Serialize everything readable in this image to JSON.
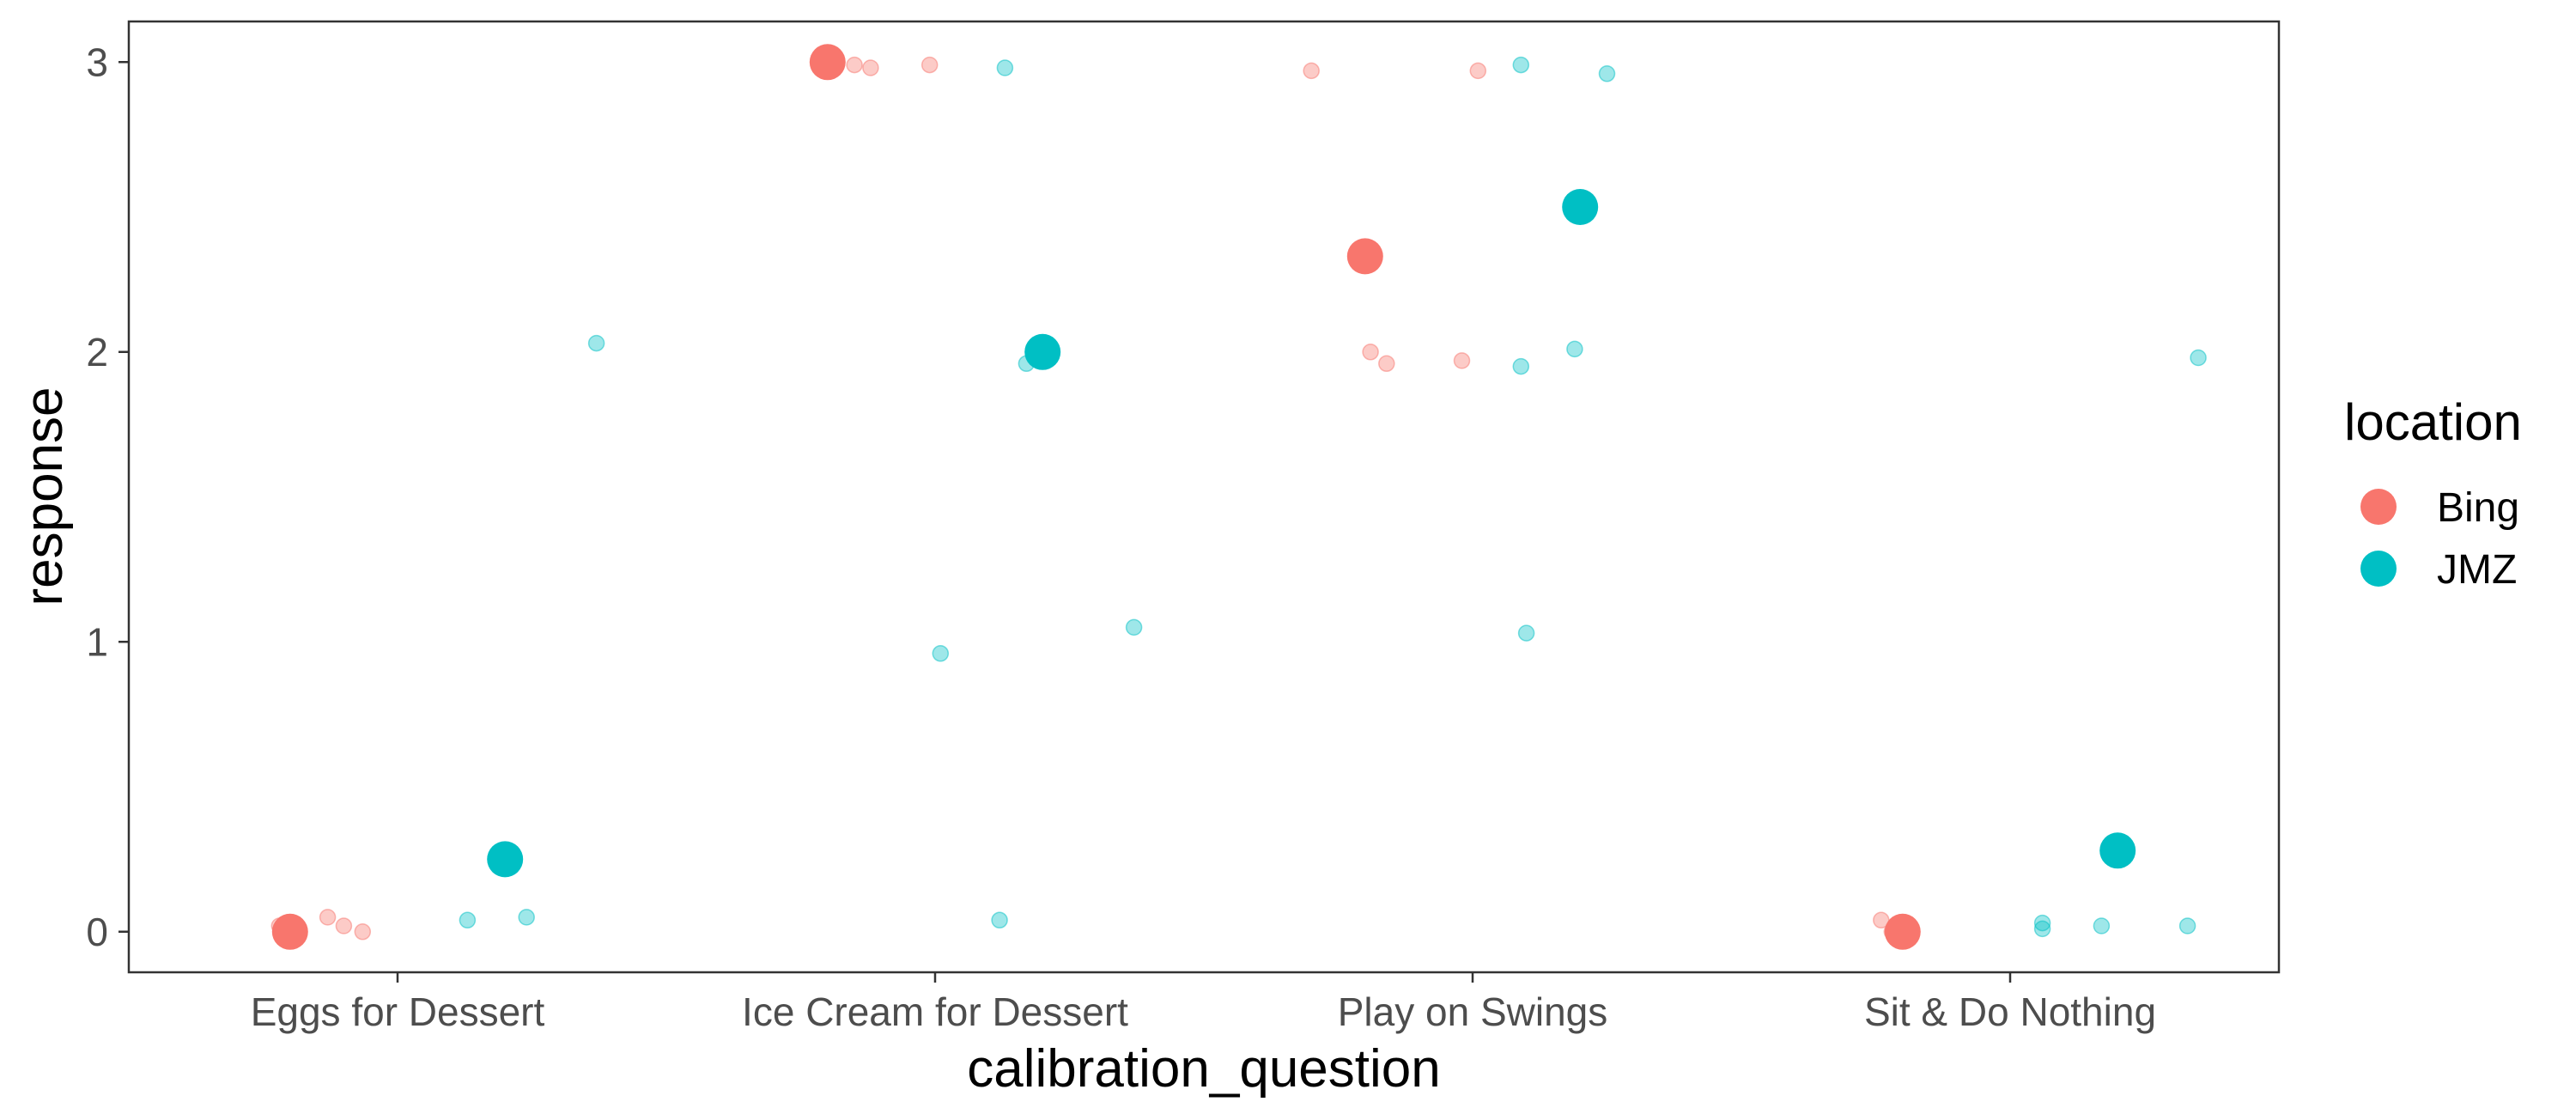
{
  "chart_data": {
    "type": "scatter",
    "title": "",
    "xlabel": "calibration_question",
    "ylabel": "response",
    "categories": [
      "Eggs for Dessert",
      "Ice Cream for Dessert",
      "Play on Swings",
      "Sit & Do Nothing"
    ],
    "yticks": [
      0,
      1,
      2,
      3
    ],
    "ylim": [
      -0.14,
      3.14
    ],
    "grid": false,
    "legend": {
      "title": "location",
      "placement": "right",
      "entries": [
        {
          "name": "Bing",
          "color": "#F8766D"
        },
        {
          "name": "JMZ",
          "color": "#00BFC4"
        }
      ]
    },
    "series": [
      {
        "name": "Bing",
        "color": "#F8766D",
        "means": [
          {
            "x": -0.2,
            "y": 0.0
          },
          {
            "x": 0.8,
            "y": 3.0
          },
          {
            "x": 1.8,
            "y": 2.33
          },
          {
            "x": 2.8,
            "y": 0.0
          }
        ],
        "points": [
          {
            "x": -0.22,
            "y": 0.02
          },
          {
            "x": -0.13,
            "y": 0.05
          },
          {
            "x": -0.1,
            "y": 0.02
          },
          {
            "x": -0.065,
            "y": 0.0
          },
          {
            "x": 0.85,
            "y": 2.99
          },
          {
            "x": 0.88,
            "y": 2.98
          },
          {
            "x": 0.99,
            "y": 2.99
          },
          {
            "x": 1.7,
            "y": 2.97
          },
          {
            "x": 1.81,
            "y": 2.0
          },
          {
            "x": 1.84,
            "y": 1.96
          },
          {
            "x": 2.01,
            "y": 2.97
          },
          {
            "x": 1.98,
            "y": 1.97
          },
          {
            "x": 2.76,
            "y": 0.04
          },
          {
            "x": 2.78,
            "y": 0.0
          }
        ]
      },
      {
        "name": "JMZ",
        "color": "#00BFC4",
        "means": [
          {
            "x": 0.2,
            "y": 0.25
          },
          {
            "x": 1.2,
            "y": 2.0
          },
          {
            "x": 2.2,
            "y": 2.5
          },
          {
            "x": 3.2,
            "y": 0.28
          }
        ],
        "points": [
          {
            "x": 0.13,
            "y": 0.04
          },
          {
            "x": 0.24,
            "y": 0.05
          },
          {
            "x": 0.37,
            "y": 2.03
          },
          {
            "x": 1.01,
            "y": 0.96
          },
          {
            "x": 1.13,
            "y": 2.98
          },
          {
            "x": 1.12,
            "y": 0.04
          },
          {
            "x": 1.17,
            "y": 1.96
          },
          {
            "x": 1.37,
            "y": 1.05
          },
          {
            "x": 2.09,
            "y": 2.99
          },
          {
            "x": 2.09,
            "y": 1.95
          },
          {
            "x": 2.1,
            "y": 1.03
          },
          {
            "x": 2.19,
            "y": 2.01
          },
          {
            "x": 2.25,
            "y": 2.96
          },
          {
            "x": 3.06,
            "y": 0.03
          },
          {
            "x": 3.06,
            "y": 0.01
          },
          {
            "x": 3.17,
            "y": 0.02
          },
          {
            "x": 3.33,
            "y": 0.02
          },
          {
            "x": 3.35,
            "y": 1.98
          }
        ]
      }
    ]
  }
}
